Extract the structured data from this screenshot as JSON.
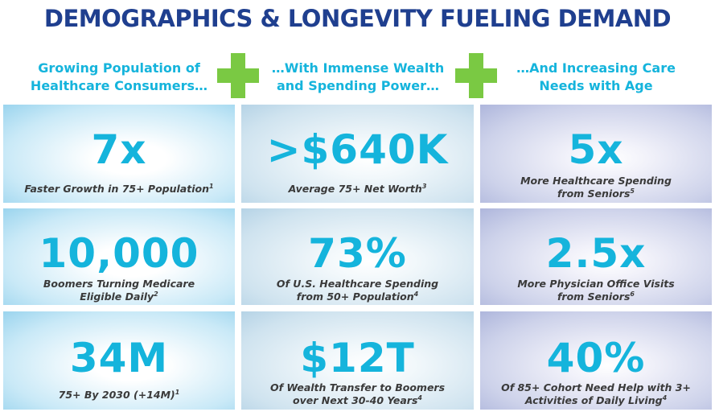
{
  "title": "DEMOGRAPHICS & LONGEVITY FUELING DEMAND",
  "columns": [
    {
      "header_lines": [
        "Growing Population of",
        "Healthcare Consumers…"
      ]
    },
    {
      "header_lines": [
        "…With Immense Wealth",
        "and Spending Power…"
      ]
    },
    {
      "header_lines": [
        "…And Increasing Care",
        "Needs with Age"
      ]
    }
  ],
  "plus_icon": "plus-icon",
  "colors": {
    "title": "#1f3f8f",
    "accent": "#15b4dc",
    "plus": "#7ac943",
    "caption": "#3a3a3a"
  },
  "stats": [
    [
      {
        "value": "7x",
        "caption_lines": [
          "Faster Growth in 75+ Population"
        ],
        "footnote": "1"
      },
      {
        "value": ">$640K",
        "caption_lines": [
          "Average 75+ Net Worth"
        ],
        "footnote": "3"
      },
      {
        "value": "5x",
        "caption_lines": [
          "More Healthcare Spending",
          "from Seniors"
        ],
        "footnote": "5"
      }
    ],
    [
      {
        "value": "10,000",
        "caption_lines": [
          "Boomers Turning Medicare",
          "Eligible Daily"
        ],
        "footnote": "2"
      },
      {
        "value": "73%",
        "caption_lines": [
          "Of U.S. Healthcare Spending",
          "from 50+ Population"
        ],
        "footnote": "4"
      },
      {
        "value": "2.5x",
        "caption_lines": [
          "More Physician Office Visits",
          "from Seniors"
        ],
        "footnote": "6"
      }
    ],
    [
      {
        "value": "34M",
        "caption_lines": [
          "75+ By 2030 (+14M)"
        ],
        "footnote": "1"
      },
      {
        "value": "$12T",
        "caption_lines": [
          "Of Wealth Transfer to Boomers",
          "over Next 30-40 Years"
        ],
        "footnote": "4"
      },
      {
        "value": "40%",
        "caption_lines": [
          "Of 85+ Cohort Need Help with 3+",
          "Activities of Daily Living"
        ],
        "footnote": "4"
      }
    ]
  ]
}
